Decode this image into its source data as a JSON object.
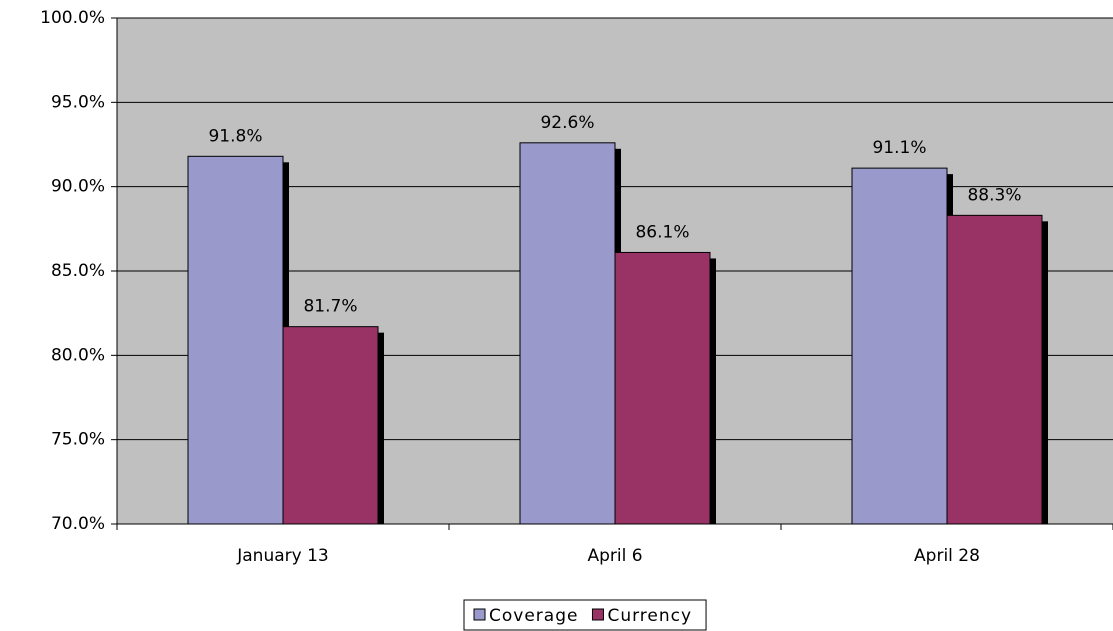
{
  "chart_data": {
    "type": "bar",
    "categories": [
      "January 13",
      "April 6",
      "April 28"
    ],
    "series": [
      {
        "name": "Coverage",
        "color": "#9999cc",
        "values": [
          91.8,
          92.6,
          91.1
        ],
        "value_labels": [
          "91.8%",
          "92.6%",
          "91.1%"
        ]
      },
      {
        "name": "Currency",
        "color": "#993366",
        "values": [
          81.7,
          86.1,
          88.3
        ],
        "value_labels": [
          "81.7%",
          "86.1%",
          "88.3%"
        ]
      }
    ],
    "ylim": [
      70,
      100
    ],
    "yticks": [
      {
        "value": 70,
        "label": "70.0%"
      },
      {
        "value": 75,
        "label": "75.0%"
      },
      {
        "value": 80,
        "label": "80.0%"
      },
      {
        "value": 85,
        "label": "85.0%"
      },
      {
        "value": 90,
        "label": "90.0%"
      },
      {
        "value": 95,
        "label": "95.0%"
      },
      {
        "value": 100,
        "label": "100.0%"
      }
    ],
    "grid": true,
    "legend": "bottom",
    "background": "#c0c0c0"
  }
}
